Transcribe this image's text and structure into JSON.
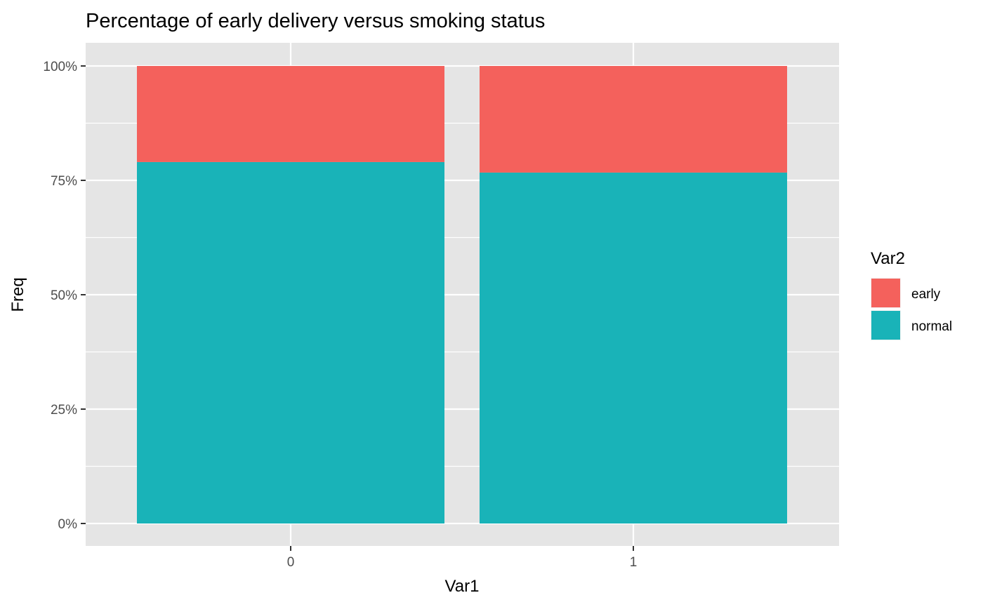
{
  "chart_data": {
    "type": "bar",
    "stacked": true,
    "title": "Percentage of early delivery versus smoking status",
    "xlabel": "Var1",
    "ylabel": "Freq",
    "categories": [
      "0",
      "1"
    ],
    "ylim": [
      0,
      1
    ],
    "yticks": [
      0,
      0.25,
      0.5,
      0.75,
      1
    ],
    "ytick_labels": [
      "0%",
      "25%",
      "50%",
      "75%",
      "100%"
    ],
    "grid": true,
    "legend": {
      "title": "Var2",
      "position": "right",
      "entries": [
        "early",
        "normal"
      ]
    },
    "series": [
      {
        "name": "normal",
        "color": "#19B3B8",
        "values": [
          0.79,
          0.767
        ]
      },
      {
        "name": "early",
        "color": "#F4615C",
        "values": [
          0.21,
          0.233
        ]
      }
    ],
    "colors": {
      "panel": "#E5E5E5",
      "grid": "#FFFFFF",
      "axis_text": "#4D4D4D"
    }
  }
}
